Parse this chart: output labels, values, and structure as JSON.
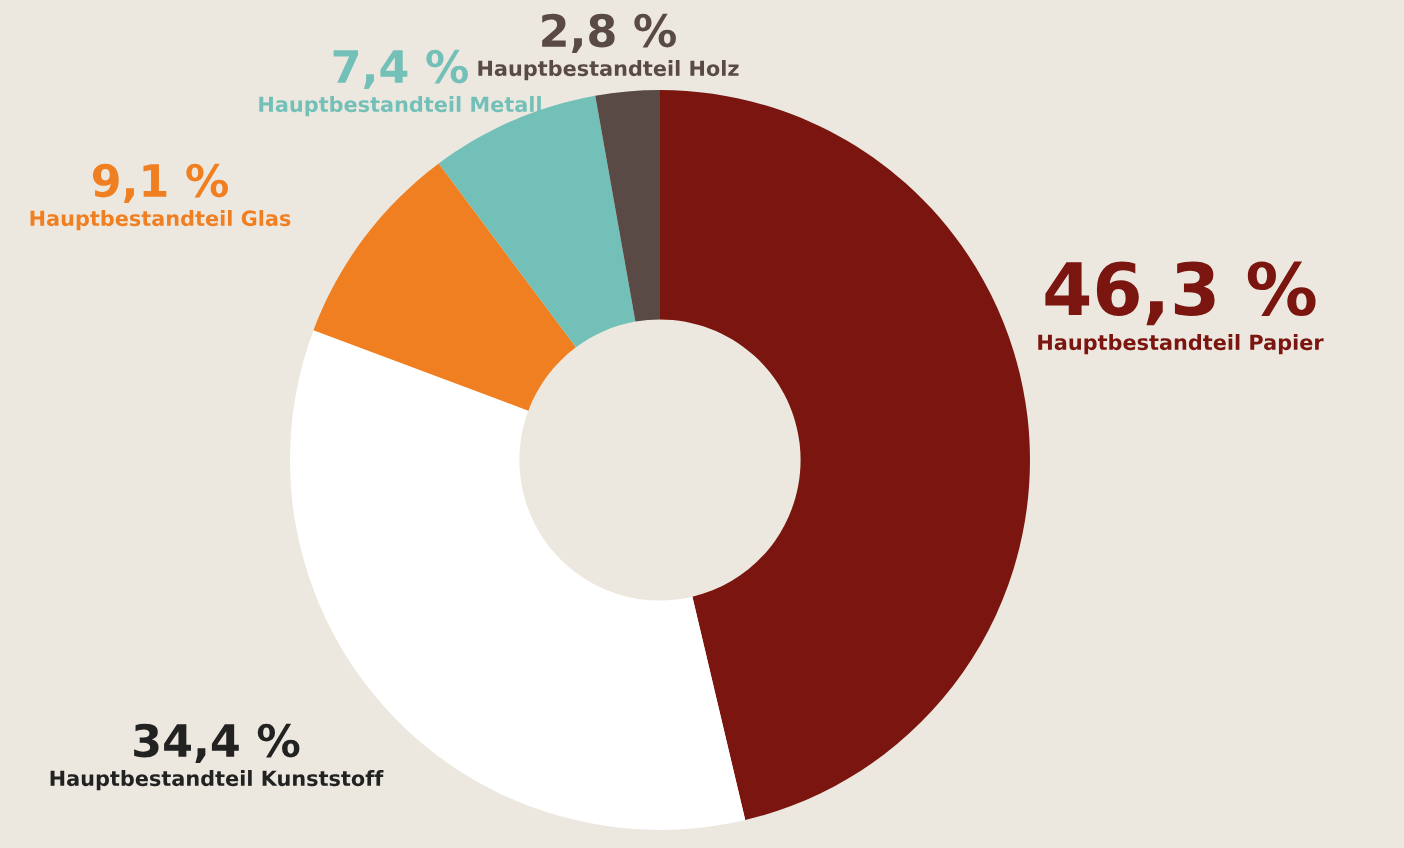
{
  "chart_data": {
    "type": "donut",
    "categories": [
      "Hauptbestandteil Papier",
      "Hauptbestandteil Kunststoff",
      "Hauptbestandteil Glas",
      "Hauptbestandteil Metall",
      "Hauptbestandteil Holz"
    ],
    "values": [
      46.3,
      34.4,
      9.1,
      7.4,
      2.8
    ],
    "value_labels": [
      "46,3 %",
      "34,4 %",
      "9,1 %",
      "7,4 %",
      "2,8 %"
    ],
    "colors": [
      "#7a1510",
      "#ffffff",
      "#f07f22",
      "#72c0b8",
      "#5a4a45"
    ]
  }
}
